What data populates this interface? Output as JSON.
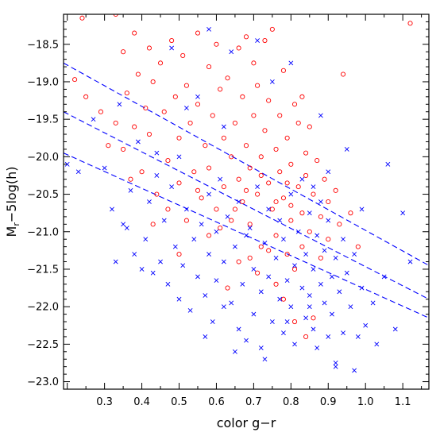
{
  "chart_data": {
    "type": "scatter",
    "xlabel": "color  g−r",
    "ylabel": {
      "main": "M",
      "sub": "r",
      "rest": "−5log(h)"
    },
    "xlim": [
      0.19,
      1.17
    ],
    "ylim": [
      -23.1,
      -18.1
    ],
    "y_inverted": true,
    "grid": false,
    "x_ticks": [
      0.3,
      0.4,
      0.5,
      0.6,
      0.7,
      0.8,
      0.9,
      1.0,
      1.1
    ],
    "x_tick_labels": [
      "0.3",
      "0.4",
      "0.5",
      "0.6",
      "0.7",
      "0.8",
      "0.9",
      "1.0",
      "1.1"
    ],
    "y_ticks": [
      -18.5,
      -19.0,
      -19.5,
      -20.0,
      -20.5,
      -21.0,
      -21.5,
      -22.0,
      -22.5,
      -23.0
    ],
    "y_tick_labels": [
      "−18.5",
      "−19.0",
      "−19.5",
      "−20.0",
      "−20.5",
      "−21.0",
      "−21.5",
      "−22.0",
      "−22.5",
      "−23.0"
    ],
    "colors": {
      "circles": "#ff0000",
      "crosses": "#0000ff",
      "lines": "#0000ff",
      "axes": "#000000"
    },
    "series": [
      {
        "marker": "circle",
        "color": "#ff0000",
        "points": [
          [
            0.24,
            -18.15
          ],
          [
            0.28,
            -18.05
          ],
          [
            0.33,
            -18.1
          ],
          [
            0.45,
            -18.05
          ],
          [
            1.12,
            -18.22
          ],
          [
            0.22,
            -18.97
          ],
          [
            0.25,
            -19.2
          ],
          [
            0.29,
            -19.4
          ],
          [
            0.31,
            -19.85
          ],
          [
            0.33,
            -19.55
          ],
          [
            0.35,
            -18.6
          ],
          [
            0.35,
            -19.9
          ],
          [
            0.36,
            -19.15
          ],
          [
            0.38,
            -18.35
          ],
          [
            0.38,
            -19.6
          ],
          [
            0.39,
            -18.9
          ],
          [
            0.4,
            -20.2
          ],
          [
            0.41,
            -19.35
          ],
          [
            0.42,
            -18.55
          ],
          [
            0.42,
            -19.7
          ],
          [
            0.43,
            -19.0
          ],
          [
            0.44,
            -20.5
          ],
          [
            0.45,
            -18.75
          ],
          [
            0.46,
            -19.4
          ],
          [
            0.47,
            -20.05
          ],
          [
            0.48,
            -18.45
          ],
          [
            0.49,
            -19.2
          ],
          [
            0.5,
            -19.75
          ],
          [
            0.5,
            -20.35
          ],
          [
            0.51,
            -18.65
          ],
          [
            0.52,
            -19.05
          ],
          [
            0.53,
            -19.55
          ],
          [
            0.54,
            -20.2
          ],
          [
            0.55,
            -18.35
          ],
          [
            0.55,
            -19.3
          ],
          [
            0.56,
            -20.55
          ],
          [
            0.57,
            -19.85
          ],
          [
            0.58,
            -18.8
          ],
          [
            0.58,
            -20.15
          ],
          [
            0.59,
            -19.45
          ],
          [
            0.6,
            -20.7
          ],
          [
            0.6,
            -18.5
          ],
          [
            0.61,
            -19.1
          ],
          [
            0.62,
            -19.75
          ],
          [
            0.62,
            -20.4
          ],
          [
            0.63,
            -18.95
          ],
          [
            0.64,
            -20.0
          ],
          [
            0.64,
            -20.85
          ],
          [
            0.65,
            -19.55
          ],
          [
            0.66,
            -18.55
          ],
          [
            0.66,
            -20.3
          ],
          [
            0.67,
            -19.2
          ],
          [
            0.67,
            -20.6
          ],
          [
            0.68,
            -19.85
          ],
          [
            0.68,
            -18.4
          ],
          [
            0.69,
            -20.15
          ],
          [
            0.69,
            -20.9
          ],
          [
            0.7,
            -19.45
          ],
          [
            0.7,
            -18.75
          ],
          [
            0.71,
            -20.5
          ],
          [
            0.71,
            -19.05
          ],
          [
            0.72,
            -20.0
          ],
          [
            0.72,
            -21.2
          ],
          [
            0.73,
            -19.65
          ],
          [
            0.73,
            -18.45
          ],
          [
            0.74,
            -20.35
          ],
          [
            0.74,
            -19.25
          ],
          [
            0.75,
            -20.7
          ],
          [
            0.75,
            -18.3
          ],
          [
            0.76,
            -19.9
          ],
          [
            0.76,
            -21.05
          ],
          [
            0.77,
            -20.2
          ],
          [
            0.77,
            -19.45
          ],
          [
            0.78,
            -20.55
          ],
          [
            0.78,
            -18.85
          ],
          [
            0.79,
            -21.3
          ],
          [
            0.79,
            -19.75
          ],
          [
            0.8,
            -20.1
          ],
          [
            0.8,
            -20.85
          ],
          [
            0.81,
            -19.3
          ],
          [
            0.81,
            -21.5
          ],
          [
            0.82,
            -20.4
          ],
          [
            0.82,
            -19.55
          ],
          [
            0.83,
            -20.75
          ],
          [
            0.83,
            -21.2
          ],
          [
            0.84,
            -19.95
          ],
          [
            0.84,
            -20.25
          ],
          [
            0.85,
            -21.0
          ],
          [
            0.85,
            -19.6
          ],
          [
            0.86,
            -20.5
          ],
          [
            0.86,
            -22.15
          ],
          [
            0.87,
            -20.05
          ],
          [
            0.88,
            -20.8
          ],
          [
            0.88,
            -21.35
          ],
          [
            0.89,
            -20.3
          ],
          [
            0.9,
            -20.6
          ],
          [
            0.9,
            -21.1
          ],
          [
            0.92,
            -20.45
          ],
          [
            0.93,
            -20.9
          ],
          [
            0.94,
            -18.9
          ],
          [
            0.96,
            -20.75
          ],
          [
            0.98,
            -21.2
          ],
          [
            0.84,
            -22.4
          ],
          [
            0.81,
            -22.2
          ],
          [
            0.76,
            -21.7
          ],
          [
            0.66,
            -21.4
          ],
          [
            0.58,
            -21.05
          ],
          [
            0.52,
            -20.85
          ],
          [
            0.47,
            -20.7
          ],
          [
            0.5,
            -21.3
          ],
          [
            0.63,
            -21.75
          ],
          [
            0.71,
            -21.55
          ],
          [
            0.78,
            -21.9
          ],
          [
            0.37,
            -20.3
          ],
          [
            0.43,
            -20.9
          ],
          [
            0.55,
            -20.45
          ],
          [
            0.61,
            -20.95
          ],
          [
            0.69,
            -21.35
          ],
          [
            0.74,
            -21.25
          ],
          [
            0.8,
            -20.65
          ],
          [
            0.83,
            -19.2
          ],
          [
            0.79,
            -20.35
          ],
          [
            0.76,
            -20.6
          ],
          [
            0.72,
            -20.25
          ],
          [
            0.68,
            -20.45
          ],
          [
            0.65,
            -20.7
          ]
        ]
      },
      {
        "marker": "cross",
        "color": "#0000ff",
        "points": [
          [
            0.2,
            -20.1
          ],
          [
            0.23,
            -20.2
          ],
          [
            0.27,
            -19.5
          ],
          [
            0.3,
            -20.15
          ],
          [
            0.32,
            -20.7
          ],
          [
            0.34,
            -19.3
          ],
          [
            0.35,
            -20.9
          ],
          [
            0.37,
            -20.45
          ],
          [
            0.38,
            -21.3
          ],
          [
            0.39,
            -19.8
          ],
          [
            0.41,
            -21.1
          ],
          [
            0.42,
            -20.6
          ],
          [
            0.43,
            -21.55
          ],
          [
            0.44,
            -20.25
          ],
          [
            0.45,
            -21.4
          ],
          [
            0.46,
            -20.85
          ],
          [
            0.47,
            -21.7
          ],
          [
            0.48,
            -20.4
          ],
          [
            0.49,
            -21.2
          ],
          [
            0.5,
            -21.9
          ],
          [
            0.5,
            -20.0
          ],
          [
            0.51,
            -21.45
          ],
          [
            0.52,
            -20.7
          ],
          [
            0.53,
            -22.05
          ],
          [
            0.54,
            -21.1
          ],
          [
            0.55,
            -21.6
          ],
          [
            0.55,
            -19.2
          ],
          [
            0.56,
            -20.9
          ],
          [
            0.57,
            -21.85
          ],
          [
            0.58,
            -21.3
          ],
          [
            0.58,
            -20.5
          ],
          [
            0.59,
            -22.2
          ],
          [
            0.6,
            -21.0
          ],
          [
            0.6,
            -21.65
          ],
          [
            0.61,
            -20.3
          ],
          [
            0.62,
            -22.0
          ],
          [
            0.62,
            -21.4
          ],
          [
            0.63,
            -20.8
          ],
          [
            0.64,
            -21.95
          ],
          [
            0.64,
            -18.6
          ],
          [
            0.65,
            -21.2
          ],
          [
            0.66,
            -22.3
          ],
          [
            0.66,
            -20.6
          ],
          [
            0.67,
            -21.7
          ],
          [
            0.68,
            -21.05
          ],
          [
            0.68,
            -22.45
          ],
          [
            0.69,
            -20.95
          ],
          [
            0.7,
            -21.5
          ],
          [
            0.7,
            -22.1
          ],
          [
            0.71,
            -20.4
          ],
          [
            0.72,
            -21.8
          ],
          [
            0.72,
            -22.55
          ],
          [
            0.73,
            -21.15
          ],
          [
            0.74,
            -21.6
          ],
          [
            0.74,
            -20.7
          ],
          [
            0.75,
            -22.2
          ],
          [
            0.75,
            -19.0
          ],
          [
            0.76,
            -21.35
          ],
          [
            0.77,
            -21.9
          ],
          [
            0.77,
            -20.85
          ],
          [
            0.78,
            -22.35
          ],
          [
            0.78,
            -21.1
          ],
          [
            0.79,
            -21.65
          ],
          [
            0.8,
            -22.0
          ],
          [
            0.8,
            -20.5
          ],
          [
            0.81,
            -21.45
          ],
          [
            0.81,
            -22.5
          ],
          [
            0.82,
            -21.0
          ],
          [
            0.83,
            -21.75
          ],
          [
            0.83,
            -20.3
          ],
          [
            0.84,
            -22.15
          ],
          [
            0.84,
            -21.3
          ],
          [
            0.85,
            -21.85
          ],
          [
            0.85,
            -20.75
          ],
          [
            0.86,
            -22.3
          ],
          [
            0.86,
            -21.5
          ],
          [
            0.87,
            -21.05
          ],
          [
            0.87,
            -22.55
          ],
          [
            0.88,
            -21.7
          ],
          [
            0.88,
            -20.6
          ],
          [
            0.89,
            -21.95
          ],
          [
            0.89,
            -21.25
          ],
          [
            0.9,
            -22.4
          ],
          [
            0.9,
            -20.85
          ],
          [
            0.91,
            -21.6
          ],
          [
            0.91,
            -22.1
          ],
          [
            0.92,
            -21.35
          ],
          [
            0.92,
            -22.75
          ],
          [
            0.93,
            -21.8
          ],
          [
            0.94,
            -21.1
          ],
          [
            0.94,
            -22.35
          ],
          [
            0.95,
            -21.55
          ],
          [
            0.96,
            -22.0
          ],
          [
            0.97,
            -21.3
          ],
          [
            0.98,
            -22.4
          ],
          [
            0.99,
            -21.75
          ],
          [
            1.0,
            -22.25
          ],
          [
            1.02,
            -21.95
          ],
          [
            1.03,
            -22.5
          ],
          [
            1.05,
            -21.6
          ],
          [
            1.08,
            -22.3
          ],
          [
            1.12,
            -21.4
          ],
          [
            1.1,
            -20.75
          ],
          [
            1.06,
            -20.1
          ],
          [
            0.99,
            -20.7
          ],
          [
            0.95,
            -19.9
          ],
          [
            0.88,
            -19.45
          ],
          [
            0.8,
            -18.75
          ],
          [
            0.71,
            -18.45
          ],
          [
            0.58,
            -18.3
          ],
          [
            0.48,
            -18.55
          ],
          [
            0.92,
            -22.8
          ],
          [
            0.97,
            -22.85
          ],
          [
            0.62,
            -19.6
          ],
          [
            0.52,
            -19.35
          ],
          [
            0.44,
            -19.95
          ],
          [
            0.4,
            -21.5
          ],
          [
            0.36,
            -20.95
          ],
          [
            0.33,
            -21.4
          ],
          [
            0.57,
            -22.4
          ],
          [
            0.65,
            -22.6
          ],
          [
            0.73,
            -22.7
          ],
          [
            0.79,
            -22.2
          ],
          [
            0.86,
            -20.4
          ],
          [
            0.9,
            -20.2
          ],
          [
            0.85,
            -22.0
          ]
        ]
      }
    ],
    "lines": [
      {
        "style": "dashed",
        "x": [
          0.19,
          1.17
        ],
        "y": [
          -18.75,
          -21.45
        ]
      },
      {
        "style": "dashed",
        "x": [
          0.19,
          1.17
        ],
        "y": [
          -19.4,
          -21.9
        ]
      },
      {
        "style": "dashed",
        "x": [
          0.19,
          1.17
        ],
        "y": [
          -19.95,
          -22.15
        ]
      }
    ]
  }
}
